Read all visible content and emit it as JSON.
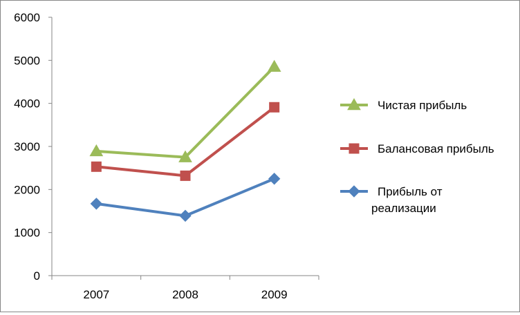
{
  "chart_data": {
    "type": "line",
    "categories": [
      "2007",
      "2008",
      "2009"
    ],
    "ylim": [
      0,
      6000
    ],
    "yticks": [
      0,
      1000,
      2000,
      3000,
      4000,
      5000,
      6000
    ],
    "grid": false,
    "legend_position": "right",
    "series": [
      {
        "name": "Чистая прибыль",
        "values": [
          2890,
          2750,
          4850
        ],
        "color": "#9BBB59",
        "marker": "triangle"
      },
      {
        "name": "Балансовая прибыль",
        "values": [
          2530,
          2320,
          3910
        ],
        "color": "#C0504D",
        "marker": "square"
      },
      {
        "name_lines": [
          "Прибыль от",
          "реализации"
        ],
        "name": "Прибыль от реализации",
        "values": [
          1670,
          1390,
          2250
        ],
        "color": "#4F81BD",
        "marker": "diamond"
      }
    ]
  }
}
